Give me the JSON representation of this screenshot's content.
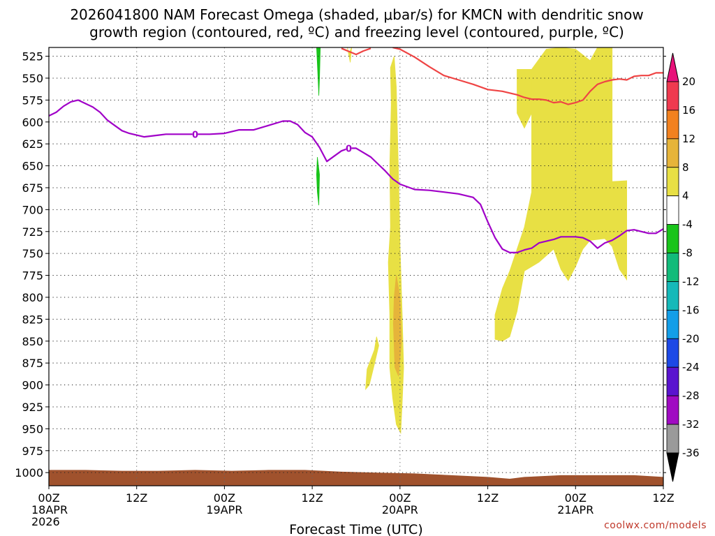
{
  "chart_data": {
    "type": "time-height",
    "title_line1": "2026041800 NAM Forecast Omega (shaded, μbar/s) for KMCN with dendritic snow",
    "title_line2": "growth region (contoured, red, ºC) and freezing level (contoured, purple, ºC)",
    "xlabel": "Forecast Time (UTC)",
    "credit": "coolwx.com/models",
    "x_range_hours": [
      0,
      84
    ],
    "y_range_mb": [
      515,
      1015
    ],
    "y_ticks": [
      525,
      550,
      575,
      600,
      625,
      650,
      675,
      700,
      725,
      750,
      775,
      800,
      825,
      850,
      875,
      900,
      925,
      950,
      975,
      1000
    ],
    "x_ticks": [
      {
        "h": 0,
        "lines": [
          "00Z",
          "18APR",
          "2026"
        ]
      },
      {
        "h": 12,
        "lines": [
          "12Z"
        ]
      },
      {
        "h": 24,
        "lines": [
          "00Z",
          "19APR"
        ]
      },
      {
        "h": 36,
        "lines": [
          "12Z"
        ]
      },
      {
        "h": 48,
        "lines": [
          "00Z",
          "20APR"
        ]
      },
      {
        "h": 60,
        "lines": [
          "12Z"
        ]
      },
      {
        "h": 72,
        "lines": [
          "00Z",
          "21APR"
        ]
      },
      {
        "h": 84,
        "lines": [
          "12Z"
        ]
      }
    ],
    "colorbar": {
      "labels": [
        "20",
        "16",
        "12",
        "8",
        "4",
        "-4",
        "-8",
        "-12",
        "-16",
        "-20",
        "-24",
        "-28",
        "-32",
        "-36"
      ],
      "colors": [
        "#ef3a4f",
        "#f2811f",
        "#e6b43a",
        "#e8e044",
        "#ffffff",
        "#19c41a",
        "#12bb7a",
        "#15b9b9",
        "#139ee8",
        "#1d49e6",
        "#5a14cf",
        "#a00bc2",
        "#9a9a9a"
      ],
      "top_arrow": "#e8127a",
      "bottom_arrow": "#000000"
    },
    "freezing_level": {
      "name": "freezing level (0 ºC)",
      "label": "0",
      "color": "#a000c8",
      "points": [
        [
          0,
          593
        ],
        [
          1,
          589
        ],
        [
          2,
          582
        ],
        [
          3,
          577
        ],
        [
          4,
          575
        ],
        [
          5,
          579
        ],
        [
          6,
          583
        ],
        [
          7,
          589
        ],
        [
          8,
          598
        ],
        [
          9,
          604
        ],
        [
          10,
          610
        ],
        [
          11,
          613
        ],
        [
          12,
          615
        ],
        [
          13,
          617
        ],
        [
          14,
          616
        ],
        [
          15,
          615
        ],
        [
          16,
          614
        ],
        [
          18,
          614
        ],
        [
          20,
          614
        ],
        [
          22,
          614
        ],
        [
          24,
          613
        ],
        [
          26,
          609
        ],
        [
          28,
          609
        ],
        [
          30,
          604
        ],
        [
          32,
          599
        ],
        [
          33,
          599
        ],
        [
          34,
          603
        ],
        [
          35,
          612
        ],
        [
          36,
          617
        ],
        [
          37,
          629
        ],
        [
          38,
          645
        ],
        [
          39,
          639
        ],
        [
          40,
          633
        ],
        [
          41,
          630
        ],
        [
          42,
          630
        ],
        [
          43,
          635
        ],
        [
          44,
          640
        ],
        [
          45,
          648
        ],
        [
          46,
          656
        ],
        [
          47,
          665
        ],
        [
          48,
          671
        ],
        [
          50,
          677
        ],
        [
          52,
          678
        ],
        [
          54,
          680
        ],
        [
          56,
          682
        ],
        [
          58,
          686
        ],
        [
          59,
          694
        ],
        [
          60,
          714
        ],
        [
          61,
          732
        ],
        [
          62,
          745
        ],
        [
          63,
          749
        ],
        [
          64,
          749
        ],
        [
          65,
          746
        ],
        [
          66,
          744
        ],
        [
          67,
          738
        ],
        [
          68,
          736
        ],
        [
          69,
          734
        ],
        [
          70,
          731
        ],
        [
          72,
          731
        ],
        [
          73,
          732
        ],
        [
          74,
          736
        ],
        [
          75,
          744
        ],
        [
          76,
          738
        ],
        [
          77,
          735
        ],
        [
          78,
          730
        ],
        [
          79,
          724
        ],
        [
          80,
          723
        ],
        [
          81,
          725
        ],
        [
          82,
          727
        ],
        [
          83,
          727
        ],
        [
          84,
          722
        ]
      ],
      "label_points": [
        [
          20,
          614
        ],
        [
          41,
          630
        ]
      ]
    },
    "dendritic_top": {
      "name": "dendritic growth region upper boundary",
      "color": "#ef4444",
      "points": [
        [
          40,
          516
        ],
        [
          42,
          523
        ],
        [
          43,
          519
        ],
        [
          44,
          516
        ]
      ]
    },
    "dendritic_line": {
      "name": "dendritic growth region lower boundary",
      "color": "#ef4444",
      "points": [
        [
          47,
          515
        ],
        [
          48,
          517
        ],
        [
          50,
          526
        ],
        [
          52,
          537
        ],
        [
          54,
          547
        ],
        [
          56,
          552
        ],
        [
          58,
          557
        ],
        [
          60,
          563
        ],
        [
          62,
          565
        ],
        [
          64,
          569
        ],
        [
          65,
          572
        ],
        [
          66,
          574
        ],
        [
          67,
          574
        ],
        [
          68,
          575
        ],
        [
          69,
          578
        ],
        [
          70,
          577
        ],
        [
          71,
          580
        ],
        [
          72,
          578
        ],
        [
          73,
          575
        ],
        [
          74,
          565
        ],
        [
          75,
          557
        ],
        [
          76,
          554
        ],
        [
          77,
          552
        ],
        [
          78,
          551
        ],
        [
          79,
          552
        ],
        [
          80,
          548
        ],
        [
          81,
          547
        ],
        [
          82,
          547
        ],
        [
          83,
          544
        ],
        [
          84,
          544
        ]
      ]
    },
    "omega_regions": [
      {
        "level": "4 to 8",
        "color": "#e8e044",
        "polygon": [
          [
            75,
            515
          ],
          [
            77,
            515
          ],
          [
            77,
            565
          ],
          [
            77,
            668
          ],
          [
            79,
            667
          ],
          [
            79,
            725
          ],
          [
            79,
            780
          ],
          [
            78,
            768
          ],
          [
            77,
            742
          ],
          [
            76,
            733
          ],
          [
            74,
            735
          ],
          [
            73,
            745
          ],
          [
            72,
            765
          ],
          [
            71,
            781
          ],
          [
            70,
            768
          ],
          [
            69,
            745
          ],
          [
            67,
            760
          ],
          [
            65,
            770
          ],
          [
            64,
            816
          ],
          [
            63,
            845
          ],
          [
            62,
            850
          ],
          [
            61,
            848
          ],
          [
            61,
            820
          ],
          [
            62,
            790
          ],
          [
            63,
            770
          ],
          [
            65,
            720
          ],
          [
            66,
            680
          ],
          [
            66,
            620
          ],
          [
            66,
            540
          ],
          [
            68,
            517
          ],
          [
            70,
            515
          ],
          [
            72,
            517
          ],
          [
            74,
            530
          ]
        ]
      },
      {
        "level": "4 to 8",
        "color": "#e8e044",
        "polygon": [
          [
            65,
            540
          ],
          [
            66,
            540
          ],
          [
            66,
            590
          ],
          [
            65,
            607
          ],
          [
            64,
            590
          ],
          [
            64,
            540
          ]
        ]
      },
      {
        "level": "4 to 8",
        "color": "#e8e044",
        "polygon": [
          [
            46.7,
            538
          ],
          [
            47.2,
            525
          ],
          [
            47.5,
            560
          ],
          [
            47.8,
            660
          ],
          [
            48,
            740
          ],
          [
            48.3,
            820
          ],
          [
            48.5,
            880
          ],
          [
            48.3,
            920
          ],
          [
            48.1,
            955
          ],
          [
            47.5,
            945
          ],
          [
            47,
            915
          ],
          [
            46.6,
            880
          ],
          [
            46.6,
            820
          ],
          [
            46.4,
            760
          ],
          [
            46.7,
            720
          ],
          [
            46.6,
            650
          ],
          [
            46.8,
            580
          ]
        ]
      },
      {
        "level": "8 to 12",
        "color": "#e6b43a",
        "polygon": [
          [
            47.5,
            775
          ],
          [
            48,
            800
          ],
          [
            48.2,
            850
          ],
          [
            47.8,
            890
          ],
          [
            47.3,
            880
          ],
          [
            47.1,
            830
          ],
          [
            47.2,
            800
          ]
        ]
      },
      {
        "level": "4 to 8",
        "color": "#e8e044",
        "polygon": [
          [
            43.5,
            882
          ],
          [
            44.5,
            860
          ],
          [
            44.8,
            845
          ],
          [
            45.1,
            855
          ],
          [
            44.4,
            880
          ],
          [
            43.8,
            900
          ],
          [
            43.3,
            905
          ]
        ]
      },
      {
        "level": "4 to 8",
        "color": "#e8e044",
        "polygon": [
          [
            40.8,
            515
          ],
          [
            41.0,
            522
          ],
          [
            41.4,
            515
          ],
          [
            41.2,
            532
          ]
        ]
      },
      {
        "level": "-4 to -8",
        "color": "#19c41a",
        "polygon": [
          [
            36.6,
            515
          ],
          [
            37.1,
            515
          ],
          [
            37.0,
            550
          ],
          [
            36.9,
            570
          ],
          [
            36.8,
            550
          ]
        ]
      },
      {
        "level": "-4 to -8",
        "color": "#19c41a",
        "polygon": [
          [
            36.7,
            640
          ],
          [
            37.0,
            660
          ],
          [
            36.9,
            695
          ],
          [
            36.7,
            680
          ],
          [
            36.6,
            660
          ]
        ]
      }
    ],
    "terrain": {
      "color": "#a0522d",
      "top_mb": [
        [
          0,
          997
        ],
        [
          5,
          997
        ],
        [
          10,
          998
        ],
        [
          15,
          998
        ],
        [
          20,
          997
        ],
        [
          25,
          998
        ],
        [
          30,
          997
        ],
        [
          35,
          997
        ],
        [
          40,
          999
        ],
        [
          45,
          1000
        ],
        [
          50,
          1001
        ],
        [
          55,
          1003
        ],
        [
          60,
          1005
        ],
        [
          63,
          1007
        ],
        [
          65,
          1005
        ],
        [
          70,
          1003
        ],
        [
          75,
          1003
        ],
        [
          80,
          1003
        ],
        [
          84,
          1005
        ]
      ]
    }
  }
}
